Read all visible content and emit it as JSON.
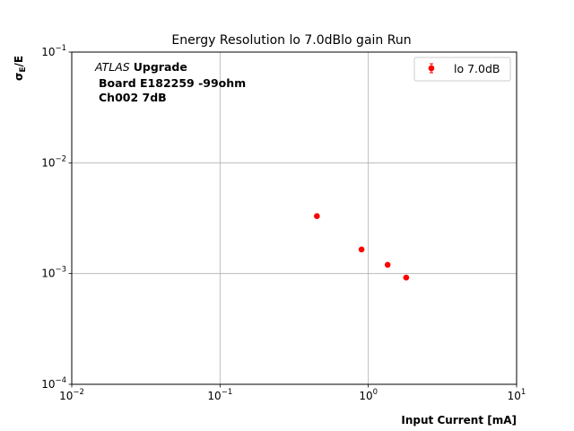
{
  "chart_data": {
    "type": "scatter",
    "title": "Energy Resolution lo 7.0dBlo gain Run",
    "xlabel": "Input Current [mA]",
    "ylabel_main": "σ",
    "ylabel_sub": "E",
    "ylabel_tail": "/E",
    "x_scale": "log",
    "y_scale": "log",
    "xlim": [
      0.01,
      10
    ],
    "ylim": [
      0.0001,
      0.1
    ],
    "x_ticks": [
      {
        "value": 0.01,
        "base": "10",
        "exp": "−2"
      },
      {
        "value": 0.1,
        "base": "10",
        "exp": "−1"
      },
      {
        "value": 1,
        "base": "10",
        "exp": "0"
      },
      {
        "value": 10,
        "base": "10",
        "exp": "1"
      }
    ],
    "y_ticks": [
      {
        "value": 0.0001,
        "base": "10",
        "exp": "−4"
      },
      {
        "value": 0.001,
        "base": "10",
        "exp": "−3"
      },
      {
        "value": 0.01,
        "base": "10",
        "exp": "−2"
      },
      {
        "value": 0.1,
        "base": "10",
        "exp": "−1"
      }
    ],
    "grid": true,
    "legend_position": "top-right",
    "series": [
      {
        "name": "lo 7.0dB",
        "color": "#ff0000",
        "marker": "circle",
        "points": [
          {
            "x": 0.45,
            "y": 0.0033
          },
          {
            "x": 0.9,
            "y": 0.00165
          },
          {
            "x": 1.35,
            "y": 0.0012
          },
          {
            "x": 1.8,
            "y": 0.00092
          }
        ]
      }
    ],
    "annotation": {
      "line1_italic": "ATLAS",
      "line1_bold": "Upgrade",
      "line2": "Board E182259 -99ohm",
      "line3": "Ch002 7dB"
    }
  }
}
